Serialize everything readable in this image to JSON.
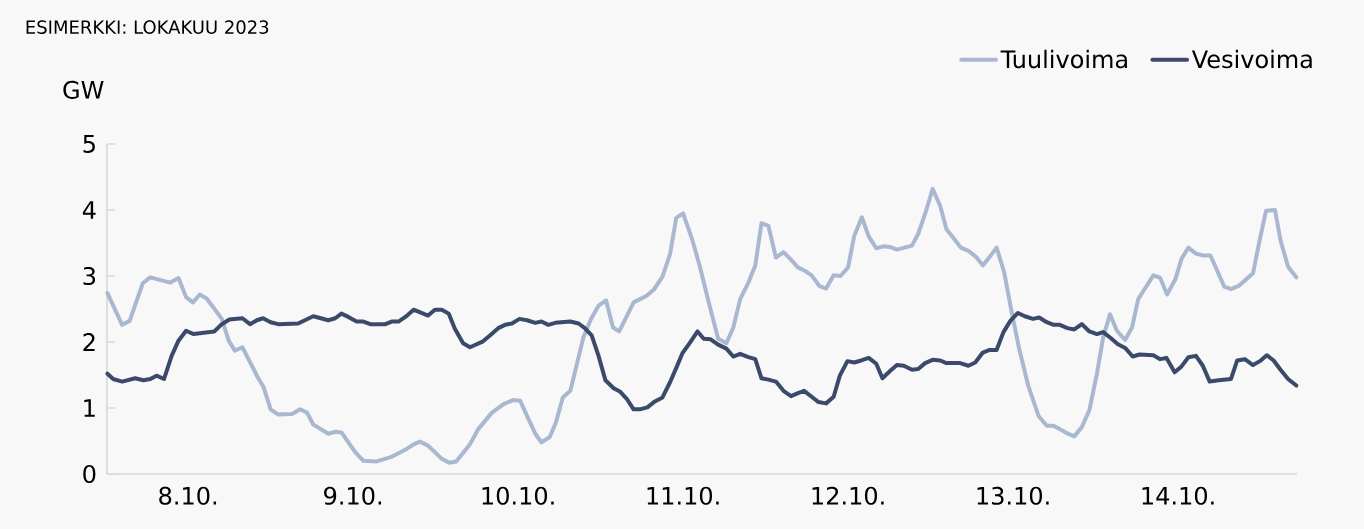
{
  "chart_data": {
    "type": "line",
    "title": "ESIMERKKI: LOKAKUU 2023",
    "ylabel": "GW",
    "xlim": [
      "2023-10-08T00:12",
      "2023-10-15T05:18"
    ],
    "ylim": [
      0,
      5
    ],
    "yticks": [
      0,
      1,
      2,
      3,
      4,
      5
    ],
    "xticks": [
      {
        "value": "2023-10-08T12:00",
        "label": "8.10."
      },
      {
        "value": "2023-10-09T12:00",
        "label": "9.10."
      },
      {
        "value": "2023-10-10T12:00",
        "label": "10.10."
      },
      {
        "value": "2023-10-11T12:00",
        "label": "11.10."
      },
      {
        "value": "2023-10-12T12:00",
        "label": "12.10."
      },
      {
        "value": "2023-10-13T12:00",
        "label": "13.10."
      },
      {
        "value": "2023-10-14T12:00",
        "label": "14.10."
      }
    ],
    "legend": "top right",
    "series": [
      {
        "name": "Tuulivoima",
        "color": "#a9b8d0",
        "x": [
          "2023-10-08T00:16",
          "2023-10-08T02:24",
          "2023-10-08T03:30",
          "2023-10-08T05:24",
          "2023-10-08T06:30",
          "2023-10-08T09:24",
          "2023-10-08T10:36",
          "2023-10-08T11:42",
          "2023-10-08T12:42",
          "2023-10-08T13:42",
          "2023-10-08T14:42",
          "2023-10-08T16:54",
          "2023-10-08T17:54",
          "2023-10-08T18:48",
          "2023-10-08T19:54",
          "2023-10-08T22:00",
          "2023-10-08T23:00",
          "2023-10-09T00:00",
          "2023-10-09T01:06",
          "2023-10-09T03:06",
          "2023-10-09T04:18",
          "2023-10-09T05:18",
          "2023-10-09T06:12",
          "2023-10-09T08:24",
          "2023-10-09T09:24",
          "2023-10-09T10:18",
          "2023-10-09T12:18",
          "2023-10-09T13:30",
          "2023-10-09T15:24",
          "2023-10-09T17:36",
          "2023-10-09T19:48",
          "2023-10-09T20:48",
          "2023-10-09T21:42",
          "2023-10-09T22:54",
          "2023-10-10T00:54",
          "2023-10-10T02:00",
          "2023-10-10T03:00",
          "2023-10-10T05:00",
          "2023-10-10T06:12",
          "2023-10-10T08:12",
          "2023-10-10T09:54",
          "2023-10-10T11:18",
          "2023-10-10T12:18",
          "2023-10-10T13:18",
          "2023-10-10T14:30",
          "2023-10-10T15:24",
          "2023-10-10T16:36",
          "2023-10-10T17:30",
          "2023-10-10T18:30",
          "2023-10-10T19:36",
          "2023-10-10T21:30",
          "2023-10-10T22:36",
          "2023-10-10T23:42",
          "2023-10-11T00:48",
          "2023-10-11T01:48",
          "2023-10-11T02:42",
          "2023-10-11T04:48",
          "2023-10-11T06:42",
          "2023-10-11T07:48",
          "2023-10-11T09:00",
          "2023-10-11T10:06",
          "2023-10-11T11:00",
          "2023-10-11T12:00",
          "2023-10-11T13:18",
          "2023-10-11T14:24",
          "2023-10-11T15:54",
          "2023-10-11T17:06",
          "2023-10-11T18:18",
          "2023-10-11T19:18",
          "2023-10-11T20:18",
          "2023-10-11T21:30",
          "2023-10-11T22:30",
          "2023-10-11T23:24",
          "2023-10-12T00:24",
          "2023-10-12T01:30",
          "2023-10-12T02:36",
          "2023-10-12T03:36",
          "2023-10-12T04:42",
          "2023-10-12T05:42",
          "2023-10-12T06:42",
          "2023-10-12T07:48",
          "2023-10-12T08:48",
          "2023-10-12T09:54",
          "2023-10-12T10:54",
          "2023-10-12T12:00",
          "2023-10-12T12:54",
          "2023-10-12T14:00",
          "2023-10-12T15:00",
          "2023-10-12T16:06",
          "2023-10-12T17:06",
          "2023-10-12T18:06",
          "2023-10-12T19:06",
          "2023-10-12T21:18",
          "2023-10-12T22:12",
          "2023-10-12T23:12",
          "2023-10-13T00:18",
          "2023-10-13T01:24",
          "2023-10-13T02:18",
          "2023-10-13T03:18",
          "2023-10-13T04:24",
          "2023-10-13T05:30",
          "2023-10-13T06:36",
          "2023-10-13T07:36",
          "2023-10-13T08:36",
          "2023-10-13T09:36",
          "2023-10-13T10:42",
          "2023-10-13T11:48",
          "2023-10-13T12:54",
          "2023-10-13T14:12",
          "2023-10-13T15:42",
          "2023-10-13T16:54",
          "2023-10-13T17:54",
          "2023-10-13T18:48",
          "2023-10-13T19:48",
          "2023-10-13T20:54",
          "2023-10-13T22:00",
          "2023-10-13T23:06",
          "2023-10-14T00:12",
          "2023-10-14T01:06",
          "2023-10-14T02:06",
          "2023-10-14T03:06",
          "2023-10-14T04:18",
          "2023-10-14T05:18",
          "2023-10-14T06:12",
          "2023-10-14T07:18",
          "2023-10-14T08:24",
          "2023-10-14T09:24",
          "2023-10-14T10:24",
          "2023-10-14T11:36",
          "2023-10-14T12:30",
          "2023-10-14T13:30",
          "2023-10-14T14:36",
          "2023-10-14T15:42",
          "2023-10-14T16:42",
          "2023-10-14T17:42",
          "2023-10-14T18:42",
          "2023-10-14T19:42",
          "2023-10-14T20:48",
          "2023-10-14T21:42",
          "2023-10-14T22:54",
          "2023-10-14T23:48",
          "2023-10-15T00:48",
          "2023-10-15T02:06",
          "2023-10-15T02:54",
          "2023-10-15T04:00",
          "2023-10-15T05:12"
        ],
        "values": [
          2.74,
          2.26,
          2.32,
          2.89,
          2.98,
          2.9,
          2.97,
          2.68,
          2.6,
          2.72,
          2.66,
          2.35,
          2.02,
          1.87,
          1.92,
          1.49,
          1.31,
          0.98,
          0.9,
          0.91,
          0.98,
          0.93,
          0.75,
          0.61,
          0.64,
          0.63,
          0.33,
          0.2,
          0.19,
          0.26,
          0.38,
          0.45,
          0.49,
          0.43,
          0.23,
          0.17,
          0.19,
          0.45,
          0.68,
          0.93,
          1.06,
          1.12,
          1.11,
          0.88,
          0.61,
          0.48,
          0.56,
          0.78,
          1.16,
          1.26,
          2.07,
          2.35,
          2.55,
          2.63,
          2.22,
          2.16,
          2.6,
          2.7,
          2.8,
          2.99,
          3.33,
          3.88,
          3.95,
          3.56,
          3.16,
          2.53,
          2.05,
          1.98,
          2.22,
          2.65,
          2.9,
          3.16,
          3.8,
          3.76,
          3.28,
          3.36,
          3.26,
          3.13,
          3.08,
          3.01,
          2.85,
          2.81,
          3.01,
          3.0,
          3.13,
          3.61,
          3.89,
          3.6,
          3.42,
          3.45,
          3.44,
          3.4,
          3.46,
          3.64,
          3.94,
          4.32,
          4.06,
          3.71,
          3.58,
          3.43,
          3.38,
          3.29,
          3.16,
          3.29,
          3.43,
          3.06,
          2.45,
          1.89,
          1.34,
          0.88,
          0.73,
          0.73,
          0.68,
          0.62,
          0.57,
          0.71,
          0.97,
          1.52,
          2.07,
          2.42,
          2.17,
          2.03,
          2.22,
          2.65,
          2.83,
          3.01,
          2.97,
          2.72,
          2.95,
          3.26,
          3.43,
          3.34,
          3.31,
          3.31,
          3.08,
          2.84,
          2.8,
          2.85,
          2.93,
          3.04,
          3.51,
          3.99,
          4.0,
          3.54,
          3.14,
          2.98
        ]
      },
      {
        "name": "Vesivoima",
        "color": "#3b4a6b",
        "x": [
          "2023-10-08T00:16",
          "2023-10-08T01:06",
          "2023-10-08T02:24",
          "2023-10-08T04:18",
          "2023-10-08T05:30",
          "2023-10-08T06:30",
          "2023-10-08T07:24",
          "2023-10-08T08:30",
          "2023-10-08T09:36",
          "2023-10-08T10:36",
          "2023-10-08T11:42",
          "2023-10-08T12:48",
          "2023-10-08T15:48",
          "2023-10-08T16:54",
          "2023-10-08T18:00",
          "2023-10-08T19:54",
          "2023-10-08T21:00",
          "2023-10-08T22:00",
          "2023-10-08T22:54",
          "2023-10-09T00:00",
          "2023-10-09T01:06",
          "2023-10-09T04:00",
          "2023-10-09T06:12",
          "2023-10-09T08:24",
          "2023-10-09T09:24",
          "2023-10-09T10:18",
          "2023-10-09T11:18",
          "2023-10-09T12:30",
          "2023-10-09T13:30",
          "2023-10-09T14:30",
          "2023-10-09T16:42",
          "2023-10-09T17:36",
          "2023-10-09T18:36",
          "2023-10-09T19:36",
          "2023-10-09T20:48",
          "2023-10-09T22:54",
          "2023-10-09T23:54",
          "2023-10-10T00:54",
          "2023-10-10T01:54",
          "2023-10-10T02:48",
          "2023-10-10T04:00",
          "2023-10-10T05:00",
          "2023-10-10T06:54",
          "2023-10-10T07:54",
          "2023-10-10T09:06",
          "2023-10-10T10:06",
          "2023-10-10T11:06",
          "2023-10-10T12:12",
          "2023-10-10T13:18",
          "2023-10-10T14:30",
          "2023-10-10T15:24",
          "2023-10-10T16:24",
          "2023-10-10T17:24",
          "2023-10-10T19:36",
          "2023-10-10T20:48",
          "2023-10-10T21:42",
          "2023-10-10T22:42",
          "2023-10-10T23:42",
          "2023-10-11T00:42",
          "2023-10-11T01:54",
          "2023-10-11T02:48",
          "2023-10-11T03:48",
          "2023-10-11T04:48",
          "2023-10-11T05:42",
          "2023-10-11T06:48",
          "2023-10-11T07:54",
          "2023-10-11T09:00",
          "2023-10-11T10:06",
          "2023-10-11T11:06",
          "2023-10-11T11:54",
          "2023-10-11T13:00",
          "2023-10-11T14:06",
          "2023-10-11T15:00",
          "2023-10-11T16:00",
          "2023-10-11T17:06",
          "2023-10-11T18:18",
          "2023-10-11T19:18",
          "2023-10-11T20:18",
          "2023-10-11T21:30",
          "2023-10-11T22:30",
          "2023-10-11T23:24",
          "2023-10-12T00:24",
          "2023-10-12T01:30",
          "2023-10-12T02:36",
          "2023-10-12T03:42",
          "2023-10-12T04:48",
          "2023-10-12T05:36",
          "2023-10-12T06:42",
          "2023-10-12T07:42",
          "2023-10-12T08:48",
          "2023-10-12T09:54",
          "2023-10-12T10:48",
          "2023-10-12T11:54",
          "2023-10-12T12:54",
          "2023-10-12T13:54",
          "2023-10-12T15:00",
          "2023-10-12T16:06",
          "2023-10-12T17:00",
          "2023-10-12T18:06",
          "2023-10-12T19:06",
          "2023-10-12T20:06",
          "2023-10-12T21:18",
          "2023-10-12T22:12",
          "2023-10-12T23:12",
          "2023-10-13T00:18",
          "2023-10-13T01:24",
          "2023-10-13T02:18",
          "2023-10-13T04:18",
          "2023-10-13T05:30",
          "2023-10-13T06:30",
          "2023-10-13T07:36",
          "2023-10-13T08:36",
          "2023-10-13T09:36",
          "2023-10-13T10:36",
          "2023-10-13T11:36",
          "2023-10-13T12:42",
          "2023-10-13T13:42",
          "2023-10-13T14:54",
          "2023-10-13T15:48",
          "2023-10-13T16:54",
          "2023-10-13T17:54",
          "2023-10-13T18:48",
          "2023-10-13T19:54",
          "2023-10-13T20:54",
          "2023-10-13T22:00",
          "2023-10-13T23:06",
          "2023-10-14T00:12",
          "2023-10-14T01:06",
          "2023-10-14T02:12",
          "2023-10-14T03:12",
          "2023-10-14T04:18",
          "2023-10-14T05:24",
          "2023-10-14T06:24",
          "2023-10-14T08:24",
          "2023-10-14T09:24",
          "2023-10-14T10:18",
          "2023-10-14T11:30",
          "2023-10-14T12:30",
          "2023-10-14T13:30",
          "2023-10-14T14:36",
          "2023-10-14T15:36",
          "2023-10-14T16:36",
          "2023-10-14T17:54",
          "2023-10-14T19:42",
          "2023-10-14T20:36",
          "2023-10-14T21:42",
          "2023-10-14T22:54",
          "2023-10-14T23:54",
          "2023-10-15T00:54",
          "2023-10-15T01:54",
          "2023-10-15T02:54",
          "2023-10-15T04:00",
          "2023-10-15T05:12"
        ],
        "values": [
          1.52,
          1.44,
          1.4,
          1.45,
          1.42,
          1.44,
          1.49,
          1.44,
          1.79,
          2.02,
          2.17,
          2.12,
          2.16,
          2.27,
          2.34,
          2.36,
          2.27,
          2.33,
          2.36,
          2.3,
          2.27,
          2.28,
          2.39,
          2.33,
          2.36,
          2.43,
          2.38,
          2.31,
          2.31,
          2.27,
          2.27,
          2.31,
          2.31,
          2.38,
          2.49,
          2.4,
          2.49,
          2.49,
          2.43,
          2.2,
          1.98,
          1.92,
          2.01,
          2.1,
          2.21,
          2.26,
          2.28,
          2.35,
          2.33,
          2.29,
          2.31,
          2.26,
          2.29,
          2.31,
          2.28,
          2.21,
          2.1,
          1.79,
          1.42,
          1.3,
          1.25,
          1.14,
          0.98,
          0.98,
          1.01,
          1.1,
          1.16,
          1.39,
          1.63,
          1.83,
          1.99,
          2.16,
          2.05,
          2.04,
          1.96,
          1.9,
          1.78,
          1.82,
          1.77,
          1.74,
          1.45,
          1.43,
          1.4,
          1.26,
          1.18,
          1.23,
          1.26,
          1.17,
          1.09,
          1.07,
          1.17,
          1.49,
          1.71,
          1.69,
          1.72,
          1.76,
          1.67,
          1.45,
          1.56,
          1.65,
          1.64,
          1.58,
          1.59,
          1.68,
          1.73,
          1.72,
          1.68,
          1.68,
          1.64,
          1.69,
          1.84,
          1.88,
          1.88,
          2.15,
          2.32,
          2.44,
          2.39,
          2.35,
          2.37,
          2.3,
          2.26,
          2.26,
          2.21,
          2.19,
          2.27,
          2.16,
          2.12,
          2.15,
          2.06,
          1.97,
          1.91,
          1.78,
          1.81,
          1.8,
          1.74,
          1.76,
          1.54,
          1.63,
          1.77,
          1.79,
          1.64,
          1.4,
          1.42,
          1.44,
          1.72,
          1.74,
          1.65,
          1.71,
          1.8,
          1.72,
          1.58,
          1.44,
          1.34
        ]
      }
    ]
  }
}
